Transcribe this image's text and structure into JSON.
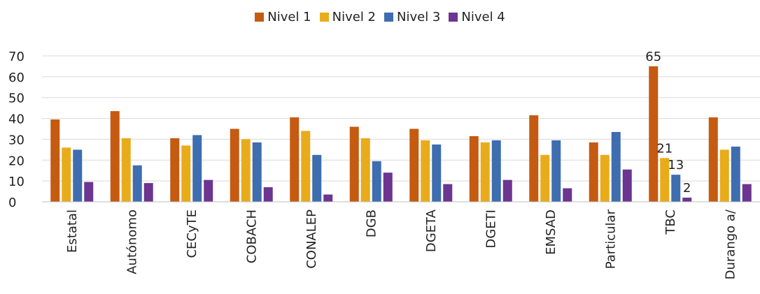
{
  "chart_data": {
    "type": "bar",
    "categories": [
      "Estatal",
      "Autónomo",
      "CECyTE",
      "COBACH",
      "CONALEP",
      "DGB",
      "DGETA",
      "DGETI",
      "EMSAD",
      "Particular",
      "TBC",
      "Durango a/"
    ],
    "series": [
      {
        "name": "Nivel 1",
        "color": "#C55A11",
        "values": [
          39.5,
          43.5,
          30.5,
          35,
          40.5,
          36,
          35,
          31.5,
          41.5,
          28.5,
          65,
          40.5
        ]
      },
      {
        "name": "Nivel 2",
        "color": "#E8AC1B",
        "values": [
          26,
          30.5,
          27,
          30,
          34,
          30.5,
          29.5,
          28.5,
          22.5,
          22.5,
          21,
          25
        ]
      },
      {
        "name": "Nivel 3",
        "color": "#3E6DB0",
        "values": [
          25,
          17.5,
          32,
          28.5,
          22.5,
          19.5,
          27.5,
          29.5,
          29.5,
          33.5,
          13,
          26.5
        ]
      },
      {
        "name": "Nivel 4",
        "color": "#6B3590",
        "values": [
          9.5,
          9,
          10.5,
          7,
          3.5,
          14,
          8.5,
          10.5,
          6.5,
          15.5,
          2,
          8.5
        ]
      }
    ],
    "data_labels": [
      {
        "category": "TBC",
        "series": "Nivel 1",
        "text": "65"
      },
      {
        "category": "TBC",
        "series": "Nivel 2",
        "text": "21"
      },
      {
        "category": "TBC",
        "series": "Nivel 3",
        "text": "13"
      },
      {
        "category": "TBC",
        "series": "Nivel 4",
        "text": "2"
      }
    ],
    "y_ticks": [
      0,
      10,
      20,
      30,
      40,
      50,
      60,
      70
    ],
    "ylim": [
      0,
      70
    ],
    "grid": true,
    "legend_position": "top"
  }
}
